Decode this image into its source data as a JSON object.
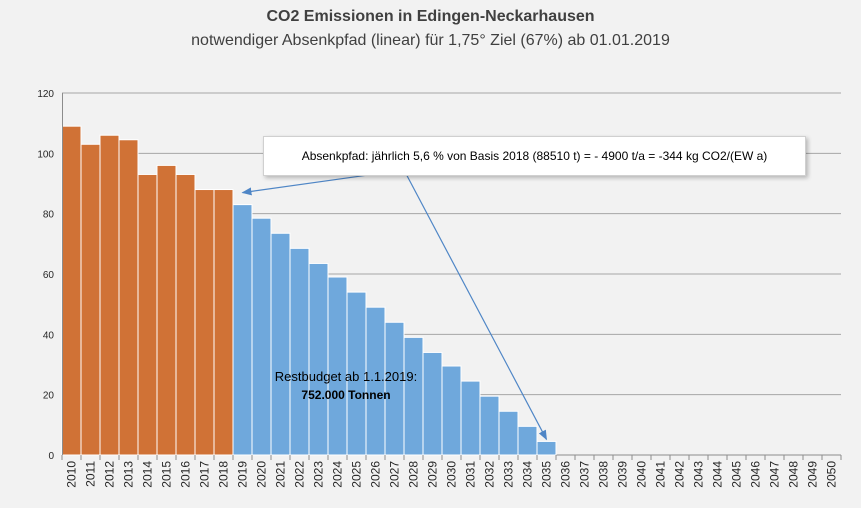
{
  "chart_data": {
    "type": "bar",
    "title": "CO2 Emissionen in Edingen-Neckarhausen",
    "subtitle": "notwendiger Absenkpfad (linear) für 1,75° Ziel (67%) ab 01.01.2019",
    "categories": [
      "2010",
      "2011",
      "2012",
      "2013",
      "2014",
      "2015",
      "2016",
      "2017",
      "2018",
      "2019",
      "2020",
      "2021",
      "2022",
      "2023",
      "2024",
      "2025",
      "2026",
      "2027",
      "2028",
      "2029",
      "2030",
      "2031",
      "2032",
      "2033",
      "2034",
      "2035",
      "2036",
      "2037",
      "2038",
      "2039",
      "2040",
      "2041",
      "2042",
      "2043",
      "2044",
      "2045",
      "2046",
      "2047",
      "2048",
      "2049",
      "2050"
    ],
    "series": [
      {
        "color": "#d07236",
        "values": [
          109,
          103,
          106,
          104.5,
          93,
          96,
          93,
          88,
          88,
          null,
          null,
          null,
          null,
          null,
          null,
          null,
          null,
          null,
          null,
          null,
          null,
          null,
          null,
          null,
          null,
          null,
          null,
          null,
          null,
          null,
          null,
          null,
          null,
          null,
          null,
          null,
          null,
          null,
          null,
          null,
          null
        ]
      },
      {
        "color": "#6fa8dc",
        "values": [
          null,
          null,
          null,
          null,
          null,
          null,
          null,
          null,
          null,
          83,
          78.5,
          73.5,
          68.5,
          63.5,
          59,
          54,
          49,
          44,
          39,
          34,
          29.5,
          24.5,
          19.5,
          14.5,
          9.5,
          4.5,
          0,
          0,
          0,
          0,
          0,
          0,
          0,
          0,
          0,
          0,
          0,
          0,
          0,
          0,
          0
        ]
      }
    ],
    "ylim": [
      0,
      120
    ],
    "yticks": [
      0,
      20,
      40,
      60,
      80,
      100,
      120
    ],
    "grid": true,
    "legend": "none",
    "annotations": {
      "callout": "Absenkpfad: jährlich 5,6 % von Basis 2018 (88510 t) =  - 4900 t/a  = -344 kg CO2/(EW a)",
      "budget_label": "Restbudget ab 1.1.2019:",
      "budget_value": "752.000 Tonnen"
    }
  }
}
